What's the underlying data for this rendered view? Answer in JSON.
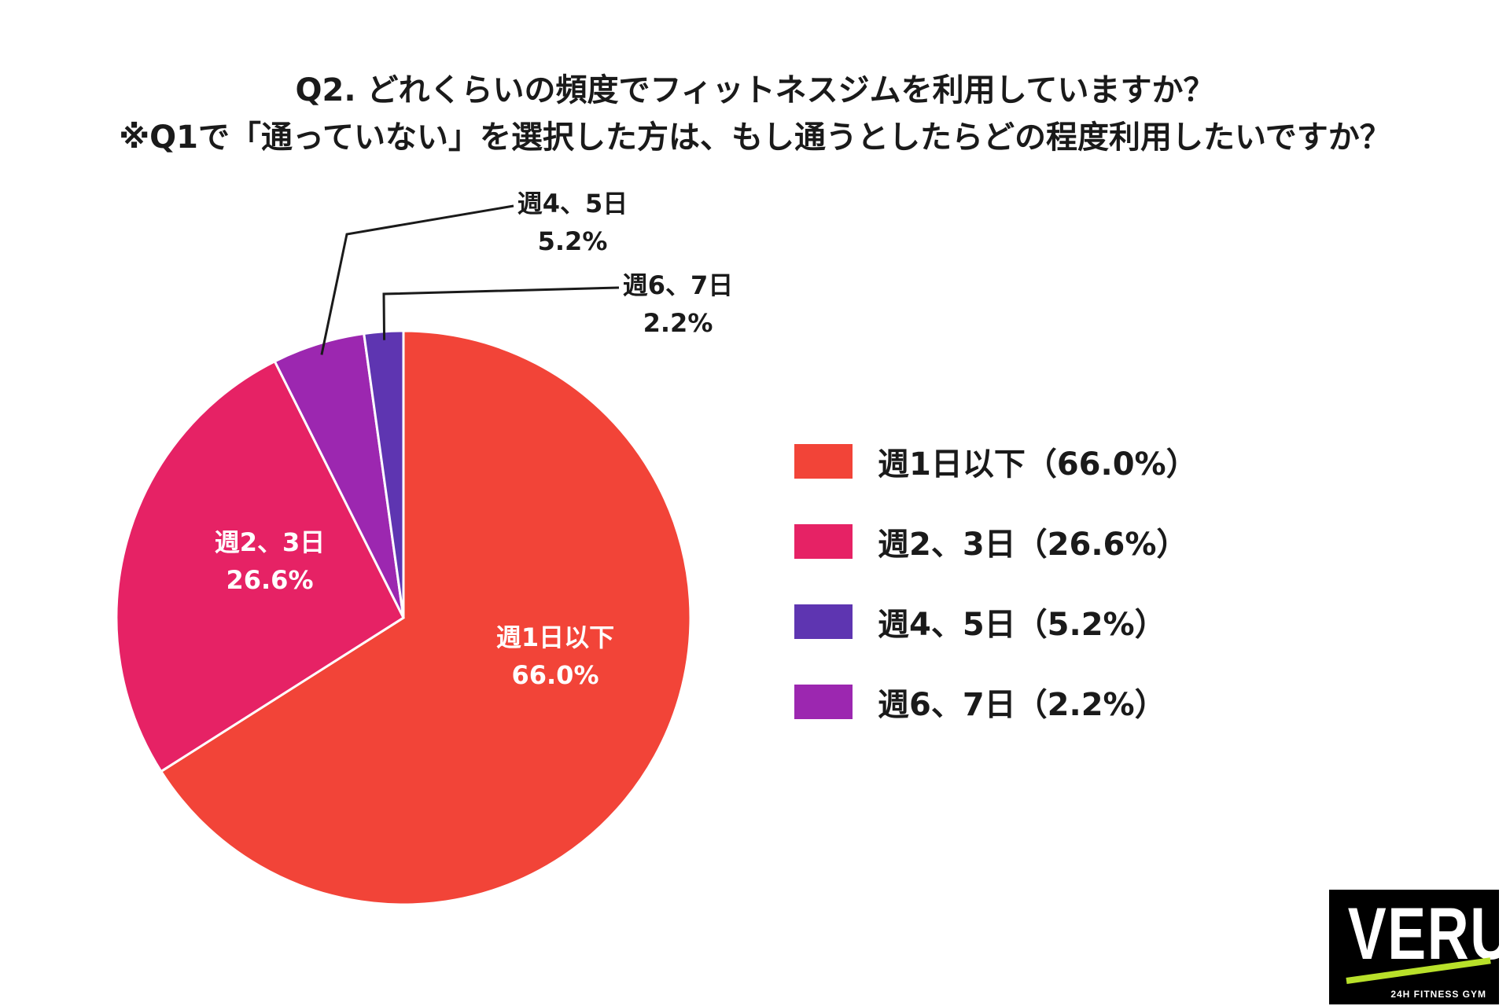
{
  "title": {
    "line1": "Q2. どれくらいの頻度でフィットネスジムを利用していますか？",
    "line2": "※Q1で「通っていない」を選択した方は、もし通うとしたらどの程度利用したいですか？"
  },
  "chart_data": {
    "type": "pie",
    "title": "Q2. どれくらいの頻度でフィットネスジムを利用していますか？",
    "subtitle": "※Q1で「通っていない」を選択した方は、もし通うとしたらどの程度利用したいですか？",
    "unit": "%",
    "legend_position": "right",
    "slices": [
      {
        "label": "週1日以下",
        "value": 66.0,
        "value_label": "66.0%",
        "color": "#f24438"
      },
      {
        "label": "週2、3日",
        "value": 26.6,
        "value_label": "26.6%",
        "color": "#e62265"
      },
      {
        "label": "週4、5日",
        "value": 5.2,
        "value_label": "5.2%",
        "color": "#9c27b0"
      },
      {
        "label": "週6、7日",
        "value": 2.2,
        "value_label": "2.2%",
        "color": "#5e35b1"
      }
    ]
  },
  "legend": [
    {
      "text": "週1日以下（66.0%）",
      "color": "#f24438"
    },
    {
      "text": "週2、3日（26.6%）",
      "color": "#e62265"
    },
    {
      "text": "週4、5日（5.2%）",
      "color": "#5e35b1"
    },
    {
      "text": "週6、7日（2.2%）",
      "color": "#9c27b0"
    }
  ],
  "logo": {
    "text": "VERUS",
    "subtext": "24H FITNESS GYM"
  }
}
